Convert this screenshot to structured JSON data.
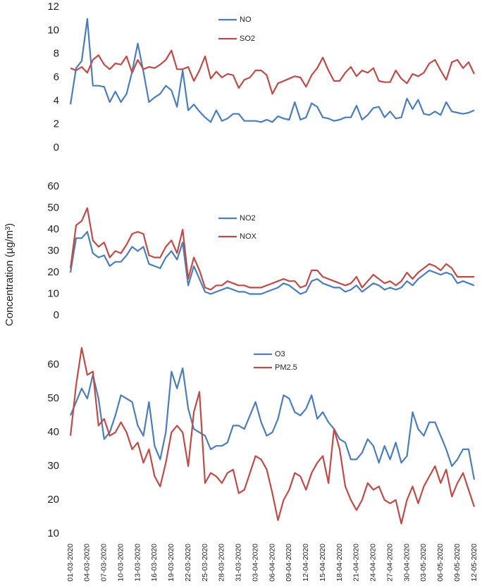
{
  "y_label": "Concentration (µg/m³)",
  "chart_data": [
    {
      "type": "line",
      "ylim": [
        0,
        12
      ],
      "yticks": [
        0,
        2,
        4,
        6,
        8,
        10,
        12
      ],
      "series": [
        {
          "name": "NO",
          "color": "#4a7ebb",
          "values": [
            3.7,
            6.8,
            7.4,
            11,
            5.3,
            5.3,
            5.2,
            3.9,
            4.8,
            3.9,
            4.6,
            6.5,
            8.9,
            6.5,
            3.9,
            4.3,
            4.6,
            5.3,
            4.9,
            3.5,
            6.6,
            3.2,
            3.7,
            3.1,
            2.6,
            2.2,
            3.2,
            2.3,
            2.5,
            2.9,
            2.9,
            2.3,
            2.3,
            2.3,
            2.2,
            2.4,
            2.2,
            2.7,
            2.5,
            2.4,
            3.9,
            2.4,
            2.6,
            3.8,
            3.5,
            2.6,
            2.5,
            2.3,
            2.4,
            2.6,
            2.6,
            3.6,
            2.4,
            2.8,
            3.4,
            3.5,
            2.6,
            3.1,
            2.5,
            2.6,
            4.2,
            3.3,
            4.1,
            2.9,
            2.8,
            3.1,
            2.8,
            3.9,
            3.1,
            3.0,
            2.9,
            3.0,
            3.2
          ]
        },
        {
          "name": "SO2",
          "color": "#be4b48",
          "values": [
            6.8,
            6.6,
            6.9,
            6.4,
            7.5,
            7.9,
            7.1,
            6.7,
            7.2,
            7.1,
            7.8,
            6.4,
            7.5,
            6.7,
            6.9,
            6.8,
            7.1,
            7.5,
            8.3,
            6.7,
            6.7,
            6.9,
            5.7,
            6.6,
            7.8,
            5.9,
            6.5,
            6.0,
            6.3,
            6.2,
            5.1,
            5.8,
            6.0,
            6.6,
            6.6,
            6.2,
            4.6,
            5.5,
            5.7,
            5.9,
            6.1,
            6.0,
            5.2,
            6.2,
            6.8,
            7.7,
            6.6,
            5.7,
            5.7,
            6.4,
            6.9,
            6.1,
            6.6,
            6.4,
            6.8,
            5.7,
            5.6,
            5.6,
            6.6,
            5.9,
            5.5,
            6.3,
            6.1,
            6.4,
            7.2,
            7.5,
            6.6,
            5.8,
            7.3,
            7.5,
            6.8,
            7.3,
            6.3
          ]
        }
      ]
    },
    {
      "type": "line",
      "ylim": [
        0,
        60
      ],
      "yticks": [
        0,
        10,
        20,
        30,
        40,
        50,
        60
      ],
      "series": [
        {
          "name": "NO2",
          "color": "#4a7ebb",
          "values": [
            20,
            36,
            36,
            39,
            29,
            27,
            28,
            23,
            25,
            25,
            28,
            32,
            30,
            32,
            24,
            23,
            22,
            27,
            30,
            26,
            34,
            14,
            23,
            17,
            11,
            10,
            11,
            12,
            13,
            12,
            11,
            11,
            10,
            10,
            10,
            11,
            12,
            13,
            15,
            14,
            12,
            10,
            11,
            16,
            17,
            15,
            14,
            13,
            13,
            11,
            12,
            14,
            11,
            13,
            15,
            14,
            12,
            13,
            12,
            13,
            16,
            14,
            17,
            19,
            21,
            20,
            19,
            20,
            19,
            15,
            16,
            15,
            14
          ]
        },
        {
          "name": "NOX",
          "color": "#be4b48",
          "values": [
            22,
            42,
            44,
            50,
            35,
            32,
            34,
            27,
            30,
            29,
            33,
            38,
            39,
            38,
            28,
            27,
            27,
            32,
            35,
            29,
            40,
            17,
            27,
            21,
            13,
            12,
            14,
            14,
            16,
            15,
            14,
            14,
            13,
            13,
            13,
            14,
            15,
            16,
            17,
            16,
            16,
            13,
            14,
            21,
            21,
            18,
            17,
            16,
            15,
            14,
            15,
            18,
            13,
            16,
            19,
            17,
            15,
            16,
            14,
            16,
            20,
            17,
            20,
            22,
            24,
            23,
            21,
            24,
            22,
            18,
            18,
            18,
            18
          ]
        }
      ]
    },
    {
      "type": "line",
      "ylim": [
        10,
        65
      ],
      "yticks": [
        10,
        20,
        30,
        40,
        50,
        60
      ],
      "categories": [
        "01-03-2020",
        null,
        null,
        "04-03-2020",
        null,
        null,
        "07-03-2020",
        null,
        null,
        "10-03-2020",
        null,
        null,
        "13-03-2020",
        null,
        null,
        "16-03-2020",
        null,
        null,
        "19-03-2020",
        null,
        null,
        "22-03-2020",
        null,
        null,
        "25-03-2020",
        null,
        null,
        "28-03-2020",
        null,
        null,
        "31-03-2020",
        null,
        null,
        "03-04-2020",
        null,
        null,
        "06-04-2020",
        null,
        null,
        "09-04-2020",
        null,
        null,
        "12-04-2020",
        null,
        null,
        "15-04-2020",
        null,
        null,
        "18-04-2020",
        null,
        null,
        "21-04-2020",
        null,
        null,
        "24-04-2020",
        null,
        null,
        "27-04-2020",
        null,
        null,
        "30-04-2020",
        null,
        null,
        "03-05-2020",
        null,
        null,
        "06-05-2020",
        null,
        null,
        "09-05-2020",
        null,
        null,
        "12-05-2020"
      ],
      "series": [
        {
          "name": "O3",
          "color": "#4a7ebb",
          "values": [
            45,
            49,
            53,
            50,
            57,
            50,
            38,
            40,
            45,
            51,
            50,
            49,
            42,
            39,
            49,
            36,
            32,
            40,
            58,
            53,
            59,
            47,
            41,
            40,
            39,
            35,
            36,
            36,
            37,
            42,
            42,
            41,
            45,
            49,
            43,
            39,
            40,
            44,
            51,
            50,
            46,
            45,
            47,
            51,
            44,
            46,
            43,
            41,
            38,
            37,
            32,
            32,
            34,
            38,
            36,
            31,
            36,
            32,
            37,
            31,
            33,
            46,
            41,
            39,
            43,
            43,
            39,
            35,
            30,
            32,
            35,
            35,
            26
          ]
        },
        {
          "name": "PM2.5",
          "color": "#be4b48",
          "values": [
            39,
            54,
            65,
            57,
            58,
            42,
            44,
            39,
            40,
            43,
            40,
            35,
            37,
            31,
            35,
            27,
            24,
            31,
            40,
            42,
            40,
            30,
            46,
            52,
            25,
            28,
            27,
            25,
            28,
            29,
            22,
            23,
            28,
            33,
            32,
            29,
            22,
            14,
            20,
            23,
            28,
            27,
            23,
            28,
            31,
            33,
            25,
            41,
            35,
            24,
            20,
            17,
            20,
            25,
            23,
            24,
            20,
            19,
            20,
            13,
            20,
            24,
            19,
            24,
            27,
            30,
            25,
            29,
            21,
            25,
            28,
            23,
            18
          ]
        }
      ]
    }
  ]
}
